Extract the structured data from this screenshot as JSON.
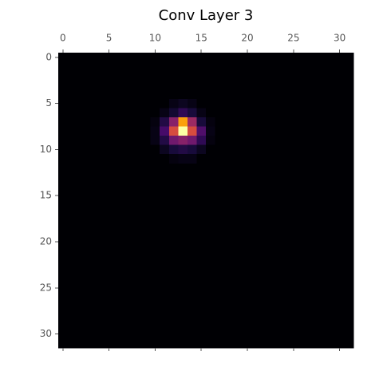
{
  "chart_data": {
    "type": "heatmap",
    "title": "Conv Layer 3",
    "colormap": "inferno",
    "xlim": [
      -0.5,
      31.5
    ],
    "ylim": [
      31.5,
      -0.5
    ],
    "xticks": [
      0,
      5,
      10,
      15,
      20,
      25,
      30
    ],
    "yticks": [
      0,
      5,
      10,
      15,
      20,
      25,
      30
    ],
    "values": [
      [
        0,
        0,
        0,
        0,
        0,
        0,
        0,
        0,
        0,
        0,
        0,
        0,
        0,
        0,
        0,
        0,
        0,
        0,
        0,
        0,
        0,
        0,
        0,
        0,
        0,
        0,
        0,
        0,
        0,
        0,
        0,
        0
      ],
      [
        0,
        0,
        0,
        0,
        0,
        0,
        0,
        0,
        0,
        0,
        0,
        0,
        0,
        0,
        0,
        0,
        0,
        0,
        0,
        0,
        0,
        0,
        0,
        0,
        0,
        0,
        0,
        0,
        0,
        0,
        0,
        0
      ],
      [
        0,
        0,
        0,
        0,
        0,
        0,
        0,
        0,
        0,
        0,
        0,
        0,
        0,
        0,
        0,
        0,
        0,
        0,
        0,
        0,
        0,
        0,
        0,
        0,
        0,
        0,
        0,
        0,
        0,
        0,
        0,
        0
      ],
      [
        0,
        0,
        0,
        0,
        0,
        0,
        0,
        0,
        0,
        0,
        0,
        0,
        0,
        0,
        0,
        0,
        0,
        0,
        0,
        0,
        0,
        0,
        0,
        0,
        0,
        0,
        0,
        0,
        0,
        0,
        0,
        0
      ],
      [
        0,
        0,
        0,
        0,
        0,
        0,
        0,
        0,
        0,
        0,
        0,
        0,
        0,
        0,
        0,
        0,
        0,
        0,
        0,
        0,
        0,
        0,
        0,
        0,
        0,
        0,
        0,
        0,
        0,
        0,
        0,
        0
      ],
      [
        0,
        0,
        0,
        0,
        0,
        0,
        0,
        0,
        0,
        0,
        0,
        0,
        0.03,
        0.05,
        0.03,
        0,
        0,
        0,
        0,
        0,
        0,
        0,
        0,
        0,
        0,
        0,
        0,
        0,
        0,
        0,
        0,
        0
      ],
      [
        0,
        0,
        0,
        0,
        0,
        0,
        0,
        0,
        0,
        0,
        0,
        0.03,
        0.08,
        0.15,
        0.1,
        0.03,
        0,
        0,
        0,
        0,
        0,
        0,
        0,
        0,
        0,
        0,
        0,
        0,
        0,
        0,
        0,
        0
      ],
      [
        0,
        0,
        0,
        0,
        0,
        0,
        0,
        0,
        0,
        0,
        0.02,
        0.12,
        0.35,
        0.75,
        0.4,
        0.1,
        0.02,
        0,
        0,
        0,
        0,
        0,
        0,
        0,
        0,
        0,
        0,
        0,
        0,
        0,
        0,
        0
      ],
      [
        0,
        0,
        0,
        0,
        0,
        0,
        0,
        0,
        0,
        0,
        0.03,
        0.2,
        0.55,
        0.95,
        0.55,
        0.22,
        0.03,
        0,
        0,
        0,
        0,
        0,
        0,
        0,
        0,
        0,
        0,
        0,
        0,
        0,
        0,
        0
      ],
      [
        0,
        0,
        0,
        0,
        0,
        0,
        0,
        0,
        0,
        0,
        0.03,
        0.12,
        0.3,
        0.35,
        0.3,
        0.15,
        0.02,
        0,
        0,
        0,
        0,
        0,
        0,
        0,
        0,
        0,
        0,
        0,
        0,
        0,
        0,
        0
      ],
      [
        0,
        0,
        0,
        0,
        0,
        0,
        0,
        0,
        0,
        0,
        0,
        0.05,
        0.1,
        0.12,
        0.1,
        0.05,
        0,
        0,
        0,
        0,
        0,
        0,
        0,
        0,
        0,
        0,
        0,
        0,
        0,
        0,
        0,
        0
      ],
      [
        0,
        0,
        0,
        0,
        0,
        0,
        0,
        0,
        0,
        0,
        0,
        0,
        0.02,
        0.03,
        0.03,
        0,
        0,
        0,
        0,
        0,
        0,
        0,
        0,
        0,
        0,
        0,
        0,
        0,
        0,
        0,
        0,
        0
      ],
      [
        0,
        0,
        0,
        0,
        0,
        0,
        0,
        0,
        0,
        0,
        0,
        0,
        0,
        0,
        0,
        0,
        0,
        0,
        0,
        0,
        0,
        0,
        0,
        0,
        0,
        0,
        0,
        0,
        0,
        0,
        0,
        0
      ],
      [
        0,
        0,
        0,
        0,
        0,
        0,
        0,
        0,
        0,
        0,
        0,
        0,
        0,
        0,
        0,
        0,
        0,
        0,
        0,
        0,
        0,
        0,
        0,
        0,
        0,
        0,
        0,
        0,
        0,
        0,
        0,
        0
      ],
      [
        0,
        0,
        0,
        0,
        0,
        0,
        0,
        0,
        0,
        0,
        0,
        0,
        0,
        0,
        0,
        0,
        0,
        0,
        0,
        0,
        0,
        0,
        0,
        0,
        0,
        0,
        0,
        0,
        0,
        0,
        0,
        0
      ],
      [
        0,
        0,
        0,
        0,
        0,
        0,
        0,
        0,
        0,
        0,
        0,
        0,
        0,
        0,
        0,
        0,
        0,
        0,
        0,
        0,
        0,
        0,
        0,
        0,
        0,
        0,
        0,
        0,
        0,
        0,
        0,
        0
      ],
      [
        0,
        0,
        0,
        0,
        0,
        0,
        0,
        0,
        0,
        0,
        0,
        0,
        0,
        0,
        0,
        0,
        0,
        0,
        0,
        0,
        0,
        0,
        0,
        0,
        0,
        0,
        0,
        0,
        0,
        0,
        0,
        0
      ],
      [
        0,
        0,
        0,
        0,
        0,
        0,
        0,
        0,
        0,
        0,
        0,
        0,
        0,
        0,
        0,
        0,
        0,
        0,
        0,
        0,
        0,
        0,
        0,
        0,
        0,
        0,
        0,
        0,
        0,
        0,
        0,
        0
      ],
      [
        0,
        0,
        0,
        0,
        0,
        0,
        0,
        0,
        0,
        0,
        0,
        0,
        0,
        0,
        0,
        0,
        0,
        0,
        0,
        0,
        0,
        0,
        0,
        0,
        0,
        0,
        0,
        0,
        0,
        0,
        0,
        0
      ],
      [
        0,
        0,
        0,
        0,
        0,
        0,
        0,
        0,
        0,
        0,
        0,
        0,
        0,
        0,
        0,
        0,
        0,
        0,
        0,
        0,
        0,
        0,
        0,
        0,
        0,
        0,
        0,
        0,
        0,
        0,
        0,
        0
      ],
      [
        0,
        0,
        0,
        0,
        0,
        0,
        0,
        0,
        0,
        0,
        0,
        0,
        0,
        0,
        0,
        0,
        0,
        0,
        0,
        0,
        0,
        0,
        0,
        0,
        0,
        0,
        0,
        0,
        0,
        0,
        0,
        0
      ],
      [
        0,
        0,
        0,
        0,
        0,
        0,
        0,
        0,
        0,
        0,
        0,
        0,
        0,
        0,
        0,
        0,
        0,
        0,
        0,
        0,
        0,
        0,
        0,
        0,
        0,
        0,
        0,
        0,
        0,
        0,
        0,
        0
      ],
      [
        0,
        0,
        0,
        0,
        0,
        0,
        0,
        0,
        0,
        0,
        0,
        0,
        0,
        0,
        0,
        0,
        0,
        0,
        0,
        0,
        0,
        0,
        0,
        0,
        0,
        0,
        0,
        0,
        0,
        0,
        0,
        0
      ],
      [
        0,
        0,
        0,
        0,
        0,
        0,
        0,
        0,
        0,
        0,
        0,
        0,
        0,
        0,
        0,
        0,
        0,
        0,
        0,
        0,
        0,
        0,
        0,
        0,
        0,
        0,
        0,
        0,
        0,
        0,
        0,
        0
      ],
      [
        0,
        0,
        0,
        0,
        0,
        0,
        0,
        0,
        0,
        0,
        0,
        0,
        0,
        0,
        0,
        0,
        0,
        0,
        0,
        0,
        0,
        0,
        0,
        0,
        0,
        0,
        0,
        0,
        0,
        0,
        0,
        0
      ],
      [
        0,
        0,
        0,
        0,
        0,
        0,
        0,
        0,
        0,
        0,
        0,
        0,
        0,
        0,
        0,
        0,
        0,
        0,
        0,
        0,
        0,
        0,
        0,
        0,
        0,
        0,
        0,
        0,
        0,
        0,
        0,
        0
      ],
      [
        0,
        0,
        0,
        0,
        0,
        0,
        0,
        0,
        0,
        0,
        0,
        0,
        0,
        0,
        0,
        0,
        0,
        0,
        0,
        0,
        0,
        0,
        0,
        0,
        0,
        0,
        0,
        0,
        0,
        0,
        0,
        0
      ],
      [
        0,
        0,
        0,
        0,
        0,
        0,
        0,
        0,
        0,
        0,
        0,
        0,
        0,
        0,
        0,
        0,
        0,
        0,
        0,
        0,
        0,
        0,
        0,
        0,
        0,
        0,
        0,
        0,
        0,
        0,
        0,
        0
      ],
      [
        0,
        0,
        0,
        0,
        0,
        0,
        0,
        0,
        0,
        0,
        0,
        0,
        0,
        0,
        0,
        0,
        0,
        0,
        0,
        0,
        0,
        0,
        0,
        0,
        0,
        0,
        0,
        0,
        0,
        0,
        0,
        0
      ],
      [
        0,
        0,
        0,
        0,
        0,
        0,
        0,
        0,
        0,
        0,
        0,
        0,
        0,
        0,
        0,
        0,
        0,
        0,
        0,
        0,
        0,
        0,
        0,
        0,
        0,
        0,
        0,
        0,
        0,
        0,
        0,
        0
      ],
      [
        0,
        0,
        0,
        0,
        0,
        0,
        0,
        0,
        0,
        0,
        0,
        0,
        0,
        0,
        0,
        0,
        0,
        0,
        0,
        0,
        0,
        0,
        0,
        0,
        0,
        0,
        0,
        0,
        0,
        0,
        0,
        0
      ],
      [
        0,
        0,
        0,
        0,
        0,
        0,
        0,
        0,
        0,
        0,
        0,
        0,
        0,
        0,
        0,
        0,
        0,
        0,
        0,
        0,
        0,
        0,
        0,
        0,
        0,
        0,
        0,
        0,
        0,
        0,
        0,
        0
      ]
    ]
  }
}
